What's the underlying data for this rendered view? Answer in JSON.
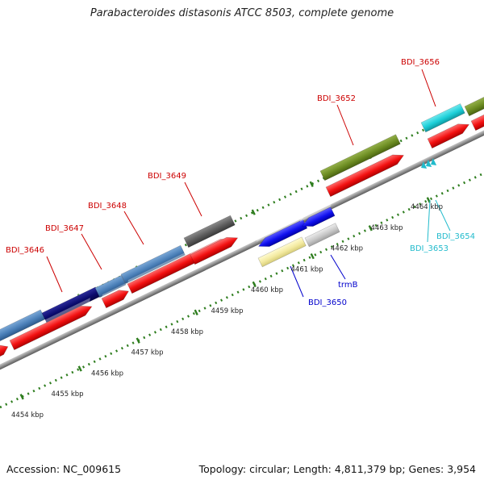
{
  "title": "Parabacteroides distasonis ATCC 8503, complete genome",
  "footer": {
    "accession": "Accession: NC_009615",
    "summary": "Topology: circular; Length: 4,811,379 bp; Genes: 3,954"
  },
  "colors": {
    "backbone": "#888888",
    "cds": "#ff1a1a",
    "tick": "#2e7d1e",
    "label_red": "#cc0000",
    "label_blue": "#0000cc",
    "label_cyan": "#22bbcc"
  },
  "scale_labels": [
    "4454 kbp",
    "4455 kbp",
    "4456 kbp",
    "4457 kbp",
    "4458 kbp",
    "4459 kbp",
    "4460 kbp",
    "4461 kbp",
    "4462 kbp",
    "4463 kbp",
    "4464 kbp"
  ],
  "gene_labels": [
    {
      "text": "BDI_3646",
      "color": "#cc0000"
    },
    {
      "text": "BDI_3647",
      "color": "#cc0000"
    },
    {
      "text": "BDI_3648",
      "color": "#cc0000"
    },
    {
      "text": "BDI_3649",
      "color": "#cc0000"
    },
    {
      "text": "BDI_3652",
      "color": "#cc0000"
    },
    {
      "text": "BDI_3656",
      "color": "#cc0000"
    },
    {
      "text": "BDI_3650",
      "color": "#0000cc"
    },
    {
      "text": "trmB",
      "color": "#0000cc"
    },
    {
      "text": "BDI_3654",
      "color": "#22bbcc"
    },
    {
      "text": "BDI_3653",
      "color": "#22bbcc"
    }
  ]
}
